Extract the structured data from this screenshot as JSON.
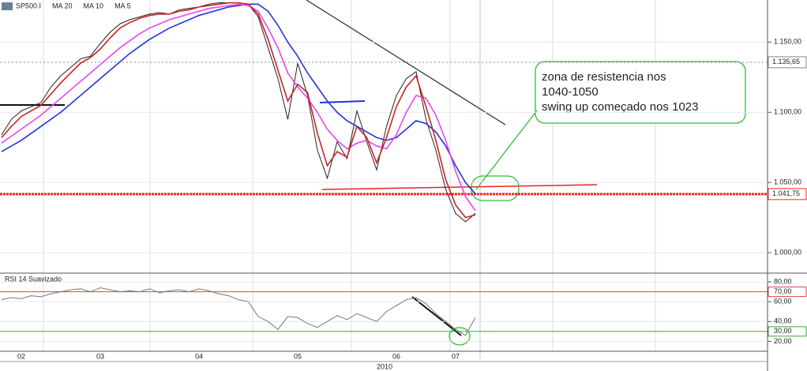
{
  "chart_data": [
    {
      "type": "line",
      "title": "SP500.I",
      "categories": [
        null,
        null,
        "02",
        null,
        null,
        null,
        null,
        null,
        null,
        null,
        "03",
        null,
        null,
        null,
        null,
        null,
        null,
        null,
        null,
        null,
        "04",
        null,
        null,
        null,
        null,
        null,
        null,
        null,
        null,
        null,
        "05",
        null,
        null,
        null,
        null,
        null,
        null,
        null,
        null,
        null,
        "06",
        null,
        null,
        null,
        null,
        null,
        "07",
        null,
        null
      ],
      "year_label": "2010",
      "series": [
        {
          "name": "SP500.I",
          "color": "#222222",
          "values": [
            1084,
            1095,
            1101,
            1104,
            1107,
            1118,
            1126,
            1132,
            1138,
            1140,
            1149,
            1157,
            1163,
            1166,
            1168,
            1170,
            1171,
            1170,
            1173,
            1174,
            1175,
            1177,
            1178,
            1178,
            1178,
            1177,
            1168,
            1146,
            1124,
            1095,
            1135,
            1112,
            1073,
            1053,
            1079,
            1067,
            1101,
            1079,
            1059,
            1090,
            1112,
            1124,
            1129,
            1095,
            1073,
            1045,
            1028,
            1022,
            1028
          ]
        },
        {
          "name": "MA 20",
          "color": "#2233dd",
          "values": [
            1072,
            1076,
            1080,
            1085,
            1090,
            1095,
            1100,
            1106,
            1112,
            1118,
            1124,
            1130,
            1136,
            1142,
            1147,
            1152,
            1156,
            1160,
            1163,
            1166,
            1169,
            1171,
            1173,
            1175,
            1176,
            1177,
            1177,
            1172,
            1162,
            1150,
            1140,
            1128,
            1118,
            1108,
            1100,
            1094,
            1090,
            1086,
            1082,
            1080,
            1082,
            1088,
            1094,
            1092,
            1086,
            1076,
            1062,
            1050,
            1042
          ]
        },
        {
          "name": "MA 10",
          "color": "#ee44ee",
          "values": [
            1078,
            1083,
            1088,
            1093,
            1098,
            1104,
            1110,
            1116,
            1122,
            1128,
            1134,
            1140,
            1146,
            1151,
            1156,
            1160,
            1163,
            1166,
            1168,
            1170,
            1172,
            1174,
            1175,
            1176,
            1177,
            1176,
            1172,
            1160,
            1146,
            1128,
            1118,
            1110,
            1100,
            1088,
            1080,
            1074,
            1078,
            1080,
            1076,
            1074,
            1084,
            1100,
            1112,
            1110,
            1098,
            1080,
            1058,
            1040,
            1030
          ]
        },
        {
          "name": "MA 5",
          "color": "#cc2222",
          "values": [
            1082,
            1090,
            1097,
            1101,
            1105,
            1113,
            1121,
            1128,
            1135,
            1139,
            1145,
            1153,
            1160,
            1164,
            1167,
            1169,
            1170,
            1170,
            1172,
            1173,
            1175,
            1176,
            1177,
            1178,
            1178,
            1177,
            1170,
            1152,
            1130,
            1108,
            1120,
            1114,
            1085,
            1062,
            1072,
            1068,
            1090,
            1082,
            1064,
            1082,
            1104,
            1118,
            1126,
            1104,
            1080,
            1052,
            1034,
            1025,
            1027
          ]
        }
      ],
      "ylim": [
        986,
        1180
      ],
      "yticks": [
        {
          "value": 1000,
          "label": "1.000,00"
        },
        {
          "value": 1050,
          "label": "1.050,00"
        },
        {
          "value": 1100,
          "label": "1.100,00"
        },
        {
          "value": 1150,
          "label": "1.150,00"
        }
      ],
      "price_markers": [
        {
          "value": 1135.65,
          "label": "1.135,65",
          "color": "#888888"
        },
        {
          "value": 1041.75,
          "label": "1.041,75",
          "color": "#ff2222"
        }
      ],
      "annotations": [
        "zona de resistencia nos",
        "1040-1050",
        "swing up começado nos 1023"
      ],
      "grid": true
    },
    {
      "type": "line",
      "title": "RSI 14 Suavizado",
      "series": [
        {
          "name": "RSI 14 Suavizado",
          "color": "#777777",
          "values": [
            62,
            64,
            63,
            66,
            65,
            68,
            70,
            72,
            73,
            70,
            74,
            72,
            70,
            71,
            70,
            73,
            69,
            71,
            72,
            70,
            73,
            71,
            68,
            66,
            62,
            60,
            45,
            40,
            32,
            45,
            44,
            38,
            34,
            40,
            46,
            42,
            48,
            44,
            40,
            50,
            56,
            62,
            64,
            58,
            48,
            40,
            32,
            26,
            44
          ]
        }
      ],
      "ylim": [
        10,
        88
      ],
      "yticks": [
        {
          "value": 20,
          "label": "20,00"
        },
        {
          "value": 40,
          "label": "40,00"
        },
        {
          "value": 60,
          "label": "60,00"
        },
        {
          "value": 80,
          "label": "80,00"
        }
      ],
      "levels": [
        {
          "value": 70,
          "label": "70,00",
          "color": "#dd4444"
        },
        {
          "value": 30,
          "label": "30,00",
          "color": "#33aa33"
        }
      ],
      "grid": true
    }
  ]
}
